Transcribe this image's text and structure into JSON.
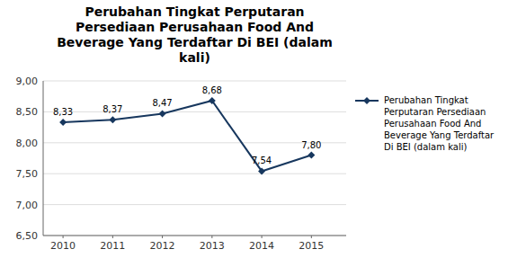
{
  "chart_data": {
    "type": "line",
    "title": "Perubahan Tingkat Perputaran\nPersediaan Perusahaan Food And\nBeverage Yang Terdaftar Di BEI (dalam\nkali)",
    "x": [
      2010,
      2011,
      2012,
      2013,
      2014,
      2015
    ],
    "series": [
      {
        "name": "Perubahan Tingkat\nPerputaran Persediaan\nPerusahaan Food And\nBeverage Yang Terdaftar\nDi BEI (dalam kali)",
        "color": "#17375E",
        "marker": "diamond",
        "values": [
          8.33,
          8.37,
          8.47,
          8.68,
          7.54,
          7.8
        ],
        "value_labels": [
          "8,33",
          "8,37",
          "8,47",
          "8,68",
          "7,54",
          "7,80"
        ]
      }
    ],
    "xlim": [
      2009.6,
      2015.7
    ],
    "xticks": [
      2010,
      2011,
      2012,
      2013,
      2014,
      2015
    ],
    "ylim": [
      6.5,
      9.0
    ],
    "yticks": [
      {
        "value": 6.5,
        "label": "6,50"
      },
      {
        "value": 7.0,
        "label": "7,00"
      },
      {
        "value": 7.5,
        "label": "7,50"
      },
      {
        "value": 8.0,
        "label": "8,00"
      },
      {
        "value": 8.5,
        "label": "8,50"
      },
      {
        "value": 9.0,
        "label": "9,00"
      }
    ],
    "grid": true,
    "data_labels": true,
    "legend": "right",
    "background_color": "#ffffff"
  }
}
